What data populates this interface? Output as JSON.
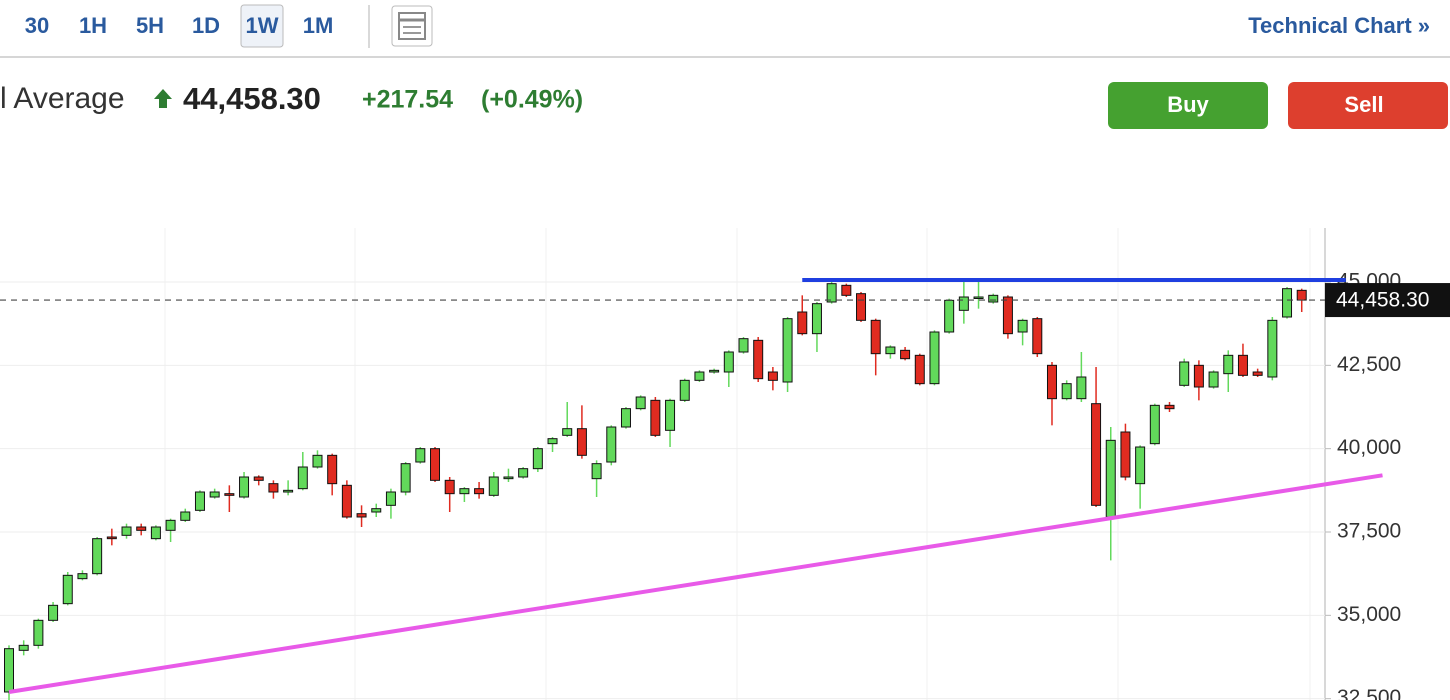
{
  "toolbar": {
    "intervals": [
      "30",
      "1H",
      "5H",
      "1D",
      "1W",
      "1M"
    ],
    "selected": 4,
    "link": "Technical Chart »"
  },
  "header": {
    "name": "l Average",
    "price": "44,458.30",
    "change": "+217.54",
    "change_pct": "(+0.49%)",
    "buy": "Buy",
    "sell": "Sell"
  },
  "chart_data": {
    "type": "candlestick",
    "up_color": "#62d95b",
    "down_color": "#e02b20",
    "open": [
      32700,
      33950,
      34100,
      34850,
      35350,
      36100,
      36250,
      37350,
      37400,
      37650,
      37300,
      37550,
      37850,
      38150,
      38550,
      38650,
      38550,
      39150,
      38950,
      38700,
      38800,
      39450,
      39800,
      38900,
      38050,
      38100,
      38300,
      38700,
      39600,
      40000,
      39050,
      38650,
      38800,
      38600,
      39100,
      39150,
      39400,
      40150,
      40400,
      40600,
      39100,
      39600,
      40650,
      41200,
      41450,
      40550,
      41450,
      42050,
      42300,
      42300,
      42900,
      43250,
      42300,
      42000,
      44100,
      43450,
      44400,
      44900,
      44650,
      43850,
      42850,
      42950,
      42800,
      41950,
      43500,
      44150,
      44550,
      44400,
      44550,
      43500,
      43900,
      42500,
      41500,
      41500,
      41350,
      37950,
      40500,
      38950,
      40150,
      41300,
      41900,
      42500,
      41850,
      42250,
      42800,
      42300,
      42150,
      43950,
      44750
    ],
    "high": [
      34100,
      34250,
      34900,
      35400,
      36300,
      36350,
      37350,
      37600,
      37750,
      37750,
      37700,
      37900,
      38200,
      38750,
      38800,
      38900,
      39300,
      39200,
      39050,
      39050,
      39900,
      39950,
      39850,
      39050,
      38300,
      38350,
      38800,
      39600,
      40050,
      40050,
      39150,
      38850,
      39000,
      39300,
      39400,
      39450,
      40050,
      40350,
      41400,
      41300,
      39650,
      40700,
      41250,
      41600,
      41550,
      41500,
      42100,
      42350,
      42400,
      42950,
      43350,
      43350,
      42450,
      43950,
      44600,
      44400,
      45000,
      44950,
      44700,
      43900,
      43100,
      43050,
      42850,
      43550,
      44500,
      45050,
      45000,
      44650,
      44600,
      43900,
      43950,
      42600,
      42050,
      42900,
      42450,
      40650,
      40750,
      40100,
      41350,
      41400,
      42700,
      42650,
      42350,
      42950,
      43150,
      42400,
      43950,
      44850,
      44800
    ],
    "low": [
      32400,
      33800,
      34000,
      34800,
      35300,
      36050,
      36200,
      37100,
      37300,
      37400,
      37250,
      37200,
      37800,
      38100,
      38500,
      38100,
      38500,
      38900,
      38500,
      38600,
      38750,
      39400,
      38600,
      37900,
      37650,
      37950,
      37900,
      38600,
      39550,
      39000,
      38100,
      38400,
      38500,
      38550,
      39000,
      39100,
      39300,
      39900,
      40350,
      39700,
      38550,
      39500,
      40600,
      41150,
      40350,
      40050,
      41400,
      42000,
      42250,
      41850,
      42850,
      42000,
      41750,
      41700,
      43400,
      42900,
      44350,
      44550,
      43800,
      42200,
      42700,
      42650,
      41900,
      41900,
      43450,
      43750,
      44200,
      44350,
      43300,
      43100,
      42750,
      40700,
      41450,
      41400,
      38250,
      36650,
      39050,
      38200,
      40100,
      41100,
      41850,
      41450,
      41800,
      41700,
      42150,
      42150,
      42050,
      43900,
      44100
    ],
    "close": [
      34000,
      34100,
      34850,
      35300,
      36200,
      36250,
      37300,
      37300,
      37650,
      37550,
      37650,
      37850,
      38100,
      38700,
      38700,
      38600,
      39150,
      39050,
      38700,
      38750,
      39450,
      39800,
      38950,
      37950,
      37950,
      38200,
      38700,
      39550,
      40000,
      39050,
      38650,
      38800,
      38650,
      39150,
      39150,
      39400,
      40000,
      40300,
      40600,
      39800,
      39550,
      40650,
      41200,
      41550,
      40400,
      41450,
      42050,
      42300,
      42350,
      42900,
      43300,
      42100,
      42050,
      43900,
      43450,
      44350,
      44950,
      44600,
      43850,
      42850,
      43050,
      42700,
      41950,
      43500,
      44450,
      44550,
      44550,
      44600,
      43450,
      43850,
      42850,
      41500,
      41950,
      42150,
      38300,
      40250,
      39150,
      40050,
      41300,
      41200,
      42600,
      41850,
      42300,
      42800,
      42200,
      42200,
      43850,
      44800,
      44458.3
    ],
    "last_price": {
      "value": 44458.3,
      "label": "44,458.30"
    },
    "ylim": [
      32460,
      46620
    ],
    "yticks": [
      {
        "value": 32500,
        "label": "32,500"
      },
      {
        "value": 35000,
        "label": "35,000"
      },
      {
        "value": 37500,
        "label": "37,500"
      },
      {
        "value": 40000,
        "label": "40,000"
      },
      {
        "value": 42500,
        "label": "42,500"
      },
      {
        "value": 45000,
        "label": "45,000"
      }
    ],
    "grid": true,
    "trendlines": [
      {
        "color": "#1f3fe0",
        "from": [
          54,
          45060
        ],
        "to": [
          91,
          45060
        ]
      },
      {
        "color": "#e85ae8",
        "from": [
          0,
          32700
        ],
        "to": [
          93.5,
          39200
        ]
      }
    ]
  }
}
